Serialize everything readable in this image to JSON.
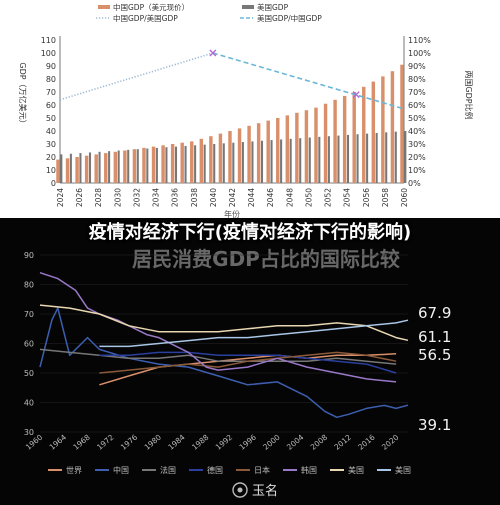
{
  "overlay": {
    "headline": "疫情对经济下行(疫情对经济下行的影响)",
    "watermark": "玉名"
  },
  "chart_data": [
    {
      "type": "bar",
      "legend": [
        {
          "name": "中国GDP（美元现价）",
          "color": "#d9906a",
          "kind": "bar"
        },
        {
          "name": "美国GDP",
          "color": "#777777",
          "kind": "bar"
        },
        {
          "name": "中国GDP/美国GDP",
          "color": "#9db8d6",
          "kind": "dotted"
        },
        {
          "name": "美国GDP/中国GDP",
          "color": "#6ab7d8",
          "kind": "dashed"
        }
      ],
      "ylabel_left": "GDP（万亿美元）",
      "ylabel_right": "两国GDP比例",
      "xlabel": "年份",
      "ylim_left": [
        0,
        110
      ],
      "ylim_right": [
        0,
        110
      ],
      "yticks_left": [
        0,
        10,
        20,
        30,
        40,
        50,
        60,
        70,
        80,
        90,
        100,
        110
      ],
      "yticks_right": [
        "0%",
        "10%",
        "20%",
        "30%",
        "40%",
        "50%",
        "60%",
        "70%",
        "80%",
        "90%",
        "100%",
        "110%"
      ],
      "x_tick_labels": [
        "2024",
        "2026",
        "2028",
        "2030",
        "2032",
        "2034",
        "2036",
        "2038",
        "2040",
        "2042",
        "2044",
        "2046",
        "2048",
        "2050",
        "2052",
        "2054",
        "2056",
        "2058",
        "2060"
      ],
      "years": [
        2024,
        2025,
        2026,
        2027,
        2028,
        2029,
        2030,
        2031,
        2032,
        2033,
        2034,
        2035,
        2036,
        2037,
        2038,
        2039,
        2040,
        2041,
        2042,
        2043,
        2044,
        2045,
        2046,
        2047,
        2048,
        2049,
        2050,
        2051,
        2052,
        2053,
        2054,
        2055,
        2056,
        2057,
        2058,
        2059,
        2060
      ],
      "series": [
        {
          "name": "中国GDP（美元现价）",
          "values": [
            18,
            19,
            20,
            21,
            22,
            23,
            24,
            25,
            26,
            27,
            28,
            29,
            30,
            31,
            32,
            34,
            36,
            38,
            40,
            42,
            44,
            46,
            48,
            50,
            52,
            54,
            56,
            58,
            61,
            64,
            67,
            70,
            74,
            78,
            82,
            86,
            91
          ]
        },
        {
          "name": "美国GDP",
          "values": [
            22,
            22.5,
            23,
            23.5,
            24,
            24.5,
            25,
            25.5,
            26,
            26.5,
            27,
            27.5,
            28,
            28.5,
            29,
            29.5,
            30,
            30.5,
            31,
            31.5,
            32,
            32.5,
            33,
            33.5,
            34,
            34.5,
            35,
            35.5,
            36,
            36.5,
            37,
            37.5,
            38,
            38.5,
            39,
            39.5,
            40
          ]
        },
        {
          "name": "中国GDP/美国GDP",
          "x": [
            2024,
            2040
          ],
          "values": [
            64,
            100
          ]
        },
        {
          "name": "美国GDP/中国GDP",
          "x": [
            2040,
            2060
          ],
          "values": [
            100,
            57
          ]
        }
      ]
    },
    {
      "type": "line",
      "title": "居民消费GDP占比的国际比较",
      "xlim": [
        1960,
        2022
      ],
      "ylim": [
        30,
        90
      ],
      "yticks": [
        30,
        40,
        50,
        60,
        70,
        80,
        90
      ],
      "x_tick_labels": [
        "1960",
        "1964",
        "1968",
        "1972",
        "1976",
        "1980",
        "1984",
        "1988",
        "1992",
        "1996",
        "2000",
        "2004",
        "2008",
        "2012",
        "2016",
        "2020"
      ],
      "value_labels": [
        "67.9",
        "61.1",
        "56.5",
        "39.1"
      ],
      "series": [
        {
          "name": "世界",
          "color": "#d9906a",
          "x": [
            1970,
            1975,
            1980,
            1985,
            1990,
            1995,
            2000,
            2005,
            2010,
            2015,
            2020
          ],
          "values": [
            46,
            49,
            52,
            53,
            54,
            55,
            56,
            55,
            56,
            56,
            56.5
          ]
        },
        {
          "name": "中国",
          "color": "#3d5fb0",
          "x": [
            1960,
            1962,
            1963,
            1965,
            1968,
            1970,
            1975,
            1980,
            1985,
            1990,
            1995,
            2000,
            2005,
            2008,
            2010,
            2012,
            2015,
            2018,
            2020,
            2022
          ],
          "values": [
            52,
            68,
            72,
            56,
            62,
            58,
            55,
            53,
            52,
            49,
            46,
            47,
            42,
            37,
            35,
            36,
            38,
            39,
            38,
            39.1
          ]
        },
        {
          "name": "法国",
          "color": "#777777",
          "x": [
            1960,
            1965,
            1970,
            1975,
            1980,
            1985,
            1990,
            1995,
            2000,
            2005,
            2010,
            2015,
            2020
          ],
          "values": [
            58,
            57,
            56,
            55,
            55,
            56,
            54,
            54,
            54,
            54,
            55,
            54,
            53
          ]
        },
        {
          "name": "德国",
          "color": "#2a3f9e",
          "x": [
            1970,
            1975,
            1980,
            1985,
            1990,
            1995,
            2000,
            2005,
            2010,
            2015,
            2020
          ],
          "values": [
            56,
            56,
            57,
            57,
            56,
            56,
            56,
            55,
            54,
            53,
            50
          ]
        },
        {
          "name": "日本",
          "color": "#8a5a3a",
          "x": [
            1970,
            1975,
            1980,
            1985,
            1990,
            1995,
            2000,
            2005,
            2010,
            2015,
            2020
          ],
          "values": [
            50,
            51,
            52,
            53,
            52,
            54,
            55,
            56,
            57,
            56,
            54
          ]
        },
        {
          "name": "韩国",
          "color": "#9a78c8",
          "x": [
            1960,
            1963,
            1966,
            1968,
            1970,
            1973,
            1975,
            1978,
            1980,
            1985,
            1988,
            1990,
            1995,
            2000,
            2005,
            2010,
            2015,
            2020
          ],
          "values": [
            84,
            82,
            78,
            72,
            70,
            68,
            66,
            63,
            62,
            57,
            52,
            51,
            52,
            55,
            52,
            50,
            48,
            47
          ]
        },
        {
          "name": "美国",
          "color": "#e8d7b0",
          "x": [
            1960,
            1965,
            1970,
            1975,
            1980,
            1985,
            1990,
            1995,
            2000,
            2005,
            2010,
            2015,
            2020,
            2022
          ],
          "values": [
            73,
            72,
            70,
            66,
            64,
            64,
            64,
            65,
            66,
            66,
            67,
            66,
            62,
            61.1
          ]
        },
        {
          "name": "美国",
          "color": "#a9c6e6",
          "x": [
            1970,
            1975,
            1980,
            1985,
            1990,
            1995,
            2000,
            2005,
            2010,
            2015,
            2020,
            2022
          ],
          "values": [
            59,
            59,
            60,
            61,
            62,
            62,
            63,
            64,
            65,
            66,
            67,
            67.9
          ]
        }
      ]
    }
  ]
}
